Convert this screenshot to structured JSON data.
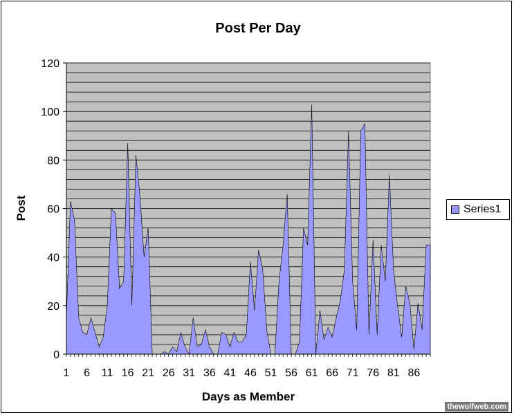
{
  "chart_data": {
    "type": "area",
    "title": "Post Per Day",
    "xlabel": "Days as Member",
    "ylabel": "Post",
    "ylim": [
      0,
      120
    ],
    "y_ticks": [
      0,
      20,
      40,
      60,
      80,
      100,
      120
    ],
    "x_tick_labels": [
      "1",
      "6",
      "11",
      "16",
      "21",
      "26",
      "31",
      "36",
      "41",
      "46",
      "51",
      "56",
      "61",
      "66",
      "71",
      "76",
      "81",
      "86"
    ],
    "x_range": [
      1,
      90
    ],
    "grid": "horizontal-minor",
    "legend_position": "right",
    "series": [
      {
        "name": "Series1",
        "color": "#9999ff",
        "x": [
          1,
          2,
          3,
          4,
          5,
          6,
          7,
          8,
          9,
          10,
          11,
          12,
          13,
          14,
          15,
          16,
          17,
          18,
          19,
          20,
          21,
          22,
          23,
          24,
          25,
          26,
          27,
          28,
          29,
          30,
          31,
          32,
          33,
          34,
          35,
          36,
          37,
          38,
          39,
          40,
          41,
          42,
          43,
          44,
          45,
          46,
          47,
          48,
          49,
          50,
          51,
          52,
          53,
          54,
          55,
          56,
          57,
          58,
          59,
          60,
          61,
          62,
          63,
          64,
          65,
          66,
          67,
          68,
          69,
          70,
          71,
          72,
          73,
          74,
          75,
          76,
          77,
          78,
          79,
          80,
          81,
          82,
          83,
          84,
          85,
          86,
          87,
          88,
          89,
          90
        ],
        "values": [
          15,
          63,
          55,
          15,
          9,
          8,
          15,
          9,
          3,
          7,
          20,
          60,
          58,
          27,
          30,
          87,
          20,
          82,
          65,
          40,
          52,
          0,
          0,
          0,
          1,
          0,
          3,
          1,
          9,
          3,
          0,
          15,
          3,
          4,
          10,
          3,
          0,
          0,
          9,
          8,
          3,
          9,
          5,
          5,
          8,
          38,
          18,
          43,
          35,
          10,
          0,
          0,
          30,
          45,
          66,
          0,
          0,
          5,
          52,
          45,
          103,
          0,
          18,
          6,
          11,
          7,
          15,
          22,
          35,
          92,
          30,
          10,
          92,
          95,
          8,
          47,
          8,
          45,
          30,
          74,
          35,
          20,
          7,
          28,
          21,
          2,
          21,
          10,
          45,
          45
        ]
      }
    ]
  },
  "legend": {
    "label": "Series1"
  },
  "watermark": "thewolfweb.com"
}
